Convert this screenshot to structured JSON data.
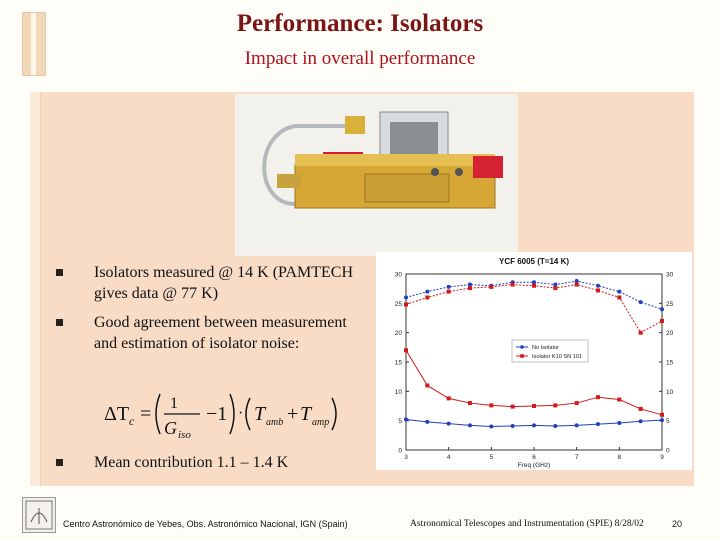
{
  "slide": {
    "title": "Performance: Isolators",
    "subtitle": "Impact in overall performance"
  },
  "bullets": [
    {
      "text": "Isolators measured @ 14 K (PAMTECH gives data @ 77 K)"
    },
    {
      "text": "Good agreement between measurement and estimation of isolator noise:"
    },
    {
      "text": "Mean contribution 1.1 – 1.4 K"
    }
  ],
  "footer": {
    "left": "Centro Astronómico de Yebes, Obs. Astronómico Nacional, IGN (Spain)",
    "middle": "Astronomical Telescopes and Instrumentation (SPIE) 8/28/02",
    "page": "20"
  },
  "chart_data": {
    "type": "line",
    "title": "YCF 6005 (T=14 K)",
    "xlabel": "Freq (GHz)",
    "ylabel": "",
    "xlim": [
      3,
      9
    ],
    "ylim": [
      0,
      30
    ],
    "xticks": [
      "3",
      "4",
      "5",
      "6",
      "7",
      "8",
      "9"
    ],
    "yticks": [
      "0",
      "5",
      "10",
      "15",
      "20",
      "25",
      "30"
    ],
    "legend": [
      "No Isolator",
      "Isolator K10 SN 101"
    ],
    "legend_position": "center-right",
    "series": [
      {
        "name": "No Isolator",
        "color": "#1f3fbf",
        "marker": "circle",
        "role": "gain",
        "x": [
          3.0,
          3.5,
          4.0,
          4.5,
          5.0,
          5.5,
          6.0,
          6.5,
          7.0,
          7.5,
          8.0,
          8.5,
          9.0
        ],
        "y": [
          26.0,
          27.0,
          27.8,
          28.2,
          28.0,
          28.6,
          28.6,
          28.2,
          28.8,
          28.0,
          27.0,
          25.2,
          24.0
        ]
      },
      {
        "name": "Isolator K10 SN 101",
        "color": "#d11a1a",
        "marker": "square",
        "role": "gain",
        "x": [
          3.0,
          3.5,
          4.0,
          4.5,
          5.0,
          5.5,
          6.0,
          6.5,
          7.0,
          7.5,
          8.0,
          8.5,
          9.0
        ],
        "y": [
          24.8,
          26.0,
          27.0,
          27.6,
          27.8,
          28.2,
          28.0,
          27.6,
          28.2,
          27.2,
          26.0,
          20.0,
          22.0
        ]
      },
      {
        "name": "No Isolator",
        "color": "#1f3fbf",
        "marker": "circle",
        "role": "noise",
        "x": [
          3.0,
          3.5,
          4.0,
          4.5,
          5.0,
          5.5,
          6.0,
          6.5,
          7.0,
          7.5,
          8.0,
          8.5,
          9.0
        ],
        "y": [
          5.2,
          4.8,
          4.5,
          4.2,
          4.0,
          4.1,
          4.2,
          4.1,
          4.2,
          4.4,
          4.6,
          4.9,
          5.1
        ]
      },
      {
        "name": "Isolator K10 SN 101",
        "color": "#d11a1a",
        "marker": "square",
        "role": "noise",
        "x": [
          3.0,
          3.5,
          4.0,
          4.5,
          5.0,
          5.5,
          6.0,
          6.5,
          7.0,
          7.5,
          8.0,
          8.5,
          9.0
        ],
        "y": [
          17.0,
          11.0,
          8.8,
          8.0,
          7.6,
          7.4,
          7.5,
          7.6,
          8.0,
          9.0,
          8.6,
          7.0,
          6.0
        ]
      }
    ]
  }
}
